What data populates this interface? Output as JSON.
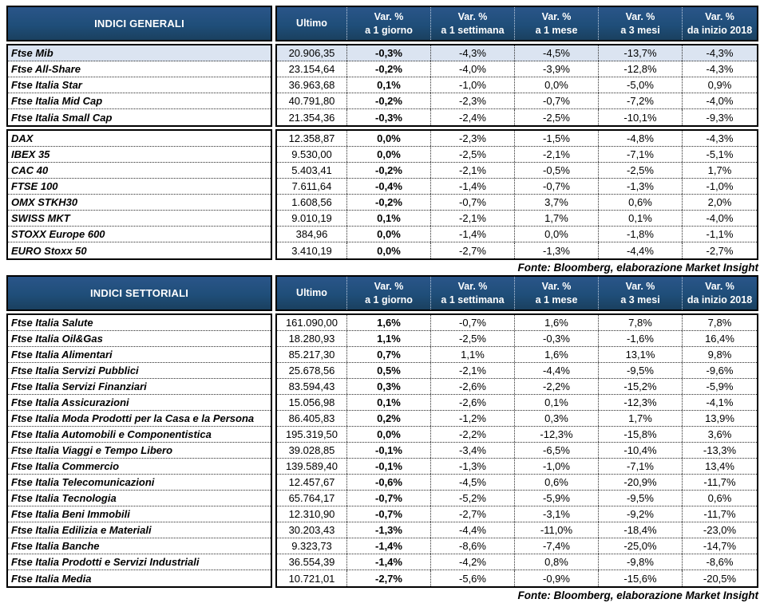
{
  "source_note": "Fonte: Bloomberg, elaborazione Market Insight",
  "colors": {
    "header_bg": "#1f4e79",
    "header_text": "#ffffff",
    "highlight_row_bg": "#dbe4f1",
    "border": "#000000"
  },
  "columns": [
    {
      "id": "ultimo",
      "line1": "Ultimo",
      "line2": "",
      "bold": false
    },
    {
      "id": "var-1-giorno",
      "line1": "Var. %",
      "line2": "a 1 giorno",
      "bold": true
    },
    {
      "id": "var-1-settimana",
      "line1": "Var. %",
      "line2": "a 1 settimana",
      "bold": false
    },
    {
      "id": "var-1-mese",
      "line1": "Var. %",
      "line2": "a 1 mese",
      "bold": false
    },
    {
      "id": "var-3-mesi",
      "line1": "Var. %",
      "line2": "a 3 mesi",
      "bold": false
    },
    {
      "id": "var-da-inizio-2018",
      "line1": "Var. %",
      "line2": "da inizio 2018",
      "bold": false
    }
  ],
  "table1": {
    "title": "INDICI GENERALI",
    "groups": [
      {
        "rows": [
          {
            "name": "Ftse Mib",
            "highlight": true,
            "values": [
              "20.906,35",
              "-0,3%",
              "-4,3%",
              "-4,5%",
              "-13,7%",
              "-4,3%"
            ]
          },
          {
            "name": "Ftse All-Share",
            "values": [
              "23.154,64",
              "-0,2%",
              "-4,0%",
              "-3,9%",
              "-12,8%",
              "-4,3%"
            ]
          },
          {
            "name": "Ftse Italia Star",
            "values": [
              "36.963,68",
              "0,1%",
              "-1,0%",
              "0,0%",
              "-5,0%",
              "0,9%"
            ]
          },
          {
            "name": "Ftse Italia Mid Cap",
            "values": [
              "40.791,80",
              "-0,2%",
              "-2,3%",
              "-0,7%",
              "-7,2%",
              "-4,0%"
            ]
          },
          {
            "name": "Ftse Italia Small Cap",
            "values": [
              "21.354,36",
              "-0,3%",
              "-2,4%",
              "-2,5%",
              "-10,1%",
              "-9,3%"
            ]
          }
        ]
      },
      {
        "rows": [
          {
            "name": "DAX",
            "values": [
              "12.358,87",
              "0,0%",
              "-2,3%",
              "-1,5%",
              "-4,8%",
              "-4,3%"
            ]
          },
          {
            "name": "IBEX 35",
            "values": [
              "9.530,00",
              "0,0%",
              "-2,5%",
              "-2,1%",
              "-7,1%",
              "-5,1%"
            ]
          },
          {
            "name": "CAC 40",
            "values": [
              "5.403,41",
              "-0,2%",
              "-2,1%",
              "-0,5%",
              "-2,5%",
              "1,7%"
            ]
          },
          {
            "name": "FTSE 100",
            "values": [
              "7.611,64",
              "-0,4%",
              "-1,4%",
              "-0,7%",
              "-1,3%",
              "-1,0%"
            ]
          },
          {
            "name": "OMX STKH30",
            "values": [
              "1.608,56",
              "-0,2%",
              "-0,7%",
              "3,7%",
              "0,6%",
              "2,0%"
            ]
          },
          {
            "name": "SWISS MKT",
            "values": [
              "9.010,19",
              "0,1%",
              "-2,1%",
              "1,7%",
              "0,1%",
              "-4,0%"
            ]
          },
          {
            "name": "STOXX Europe 600",
            "values": [
              "384,96",
              "0,0%",
              "-1,4%",
              "0,0%",
              "-1,8%",
              "-1,1%"
            ]
          },
          {
            "name": "EURO Stoxx 50",
            "values": [
              "3.410,19",
              "0,0%",
              "-2,7%",
              "-1,3%",
              "-4,4%",
              "-2,7%"
            ]
          }
        ]
      }
    ]
  },
  "table2": {
    "title": "INDICI SETTORIALI",
    "groups": [
      {
        "rows": [
          {
            "name": "Ftse Italia Salute",
            "values": [
              "161.090,00",
              "1,6%",
              "-0,7%",
              "1,6%",
              "7,8%",
              "7,8%"
            ]
          },
          {
            "name": "Ftse Italia Oil&Gas",
            "values": [
              "18.280,93",
              "1,1%",
              "-2,5%",
              "-0,3%",
              "-1,6%",
              "16,4%"
            ]
          },
          {
            "name": "Ftse Italia Alimentari",
            "values": [
              "85.217,30",
              "0,7%",
              "1,1%",
              "1,6%",
              "13,1%",
              "9,8%"
            ]
          },
          {
            "name": "Ftse Italia Servizi Pubblici",
            "values": [
              "25.678,56",
              "0,5%",
              "-2,1%",
              "-4,4%",
              "-9,5%",
              "-9,6%"
            ]
          },
          {
            "name": "Ftse Italia Servizi Finanziari",
            "values": [
              "83.594,43",
              "0,3%",
              "-2,6%",
              "-2,2%",
              "-15,2%",
              "-5,9%"
            ]
          },
          {
            "name": "Ftse Italia Assicurazioni",
            "values": [
              "15.056,98",
              "0,1%",
              "-2,6%",
              "0,1%",
              "-12,3%",
              "-4,1%"
            ]
          },
          {
            "name": "Ftse Italia Moda Prodotti per la Casa e la Persona",
            "values": [
              "86.405,83",
              "0,2%",
              "-1,2%",
              "0,3%",
              "1,7%",
              "13,9%"
            ]
          },
          {
            "name": "Ftse Italia Automobili e Componentistica",
            "values": [
              "195.319,50",
              "0,0%",
              "-2,2%",
              "-12,3%",
              "-15,8%",
              "3,6%"
            ]
          },
          {
            "name": "Ftse Italia Viaggi e Tempo Libero",
            "values": [
              "39.028,85",
              "-0,1%",
              "-3,4%",
              "-6,5%",
              "-10,4%",
              "-13,3%"
            ]
          },
          {
            "name": "Ftse Italia Commercio",
            "values": [
              "139.589,40",
              "-0,1%",
              "-1,3%",
              "-1,0%",
              "-7,1%",
              "13,4%"
            ]
          },
          {
            "name": "Ftse Italia Telecomunicazioni",
            "values": [
              "12.457,67",
              "-0,6%",
              "-4,5%",
              "0,6%",
              "-20,9%",
              "-11,7%"
            ]
          },
          {
            "name": "Ftse Italia Tecnologia",
            "values": [
              "65.764,17",
              "-0,7%",
              "-5,2%",
              "-5,9%",
              "-9,5%",
              "0,6%"
            ]
          },
          {
            "name": "Ftse Italia Beni Immobili",
            "values": [
              "12.310,90",
              "-0,7%",
              "-2,7%",
              "-3,1%",
              "-9,2%",
              "-11,7%"
            ]
          },
          {
            "name": "Ftse Italia Edilizia e Materiali",
            "values": [
              "30.203,43",
              "-1,3%",
              "-4,4%",
              "-11,0%",
              "-18,4%",
              "-23,0%"
            ]
          },
          {
            "name": "Ftse Italia Banche",
            "values": [
              "9.323,73",
              "-1,4%",
              "-8,6%",
              "-7,4%",
              "-25,0%",
              "-14,7%"
            ]
          },
          {
            "name": "Ftse Italia Prodotti e Servizi Industriali",
            "values": [
              "36.554,39",
              "-1,4%",
              "-4,2%",
              "0,8%",
              "-9,8%",
              "-8,6%"
            ]
          },
          {
            "name": "Ftse Italia Media",
            "values": [
              "10.721,01",
              "-2,7%",
              "-5,6%",
              "-0,9%",
              "-15,6%",
              "-20,5%"
            ]
          }
        ]
      }
    ]
  }
}
